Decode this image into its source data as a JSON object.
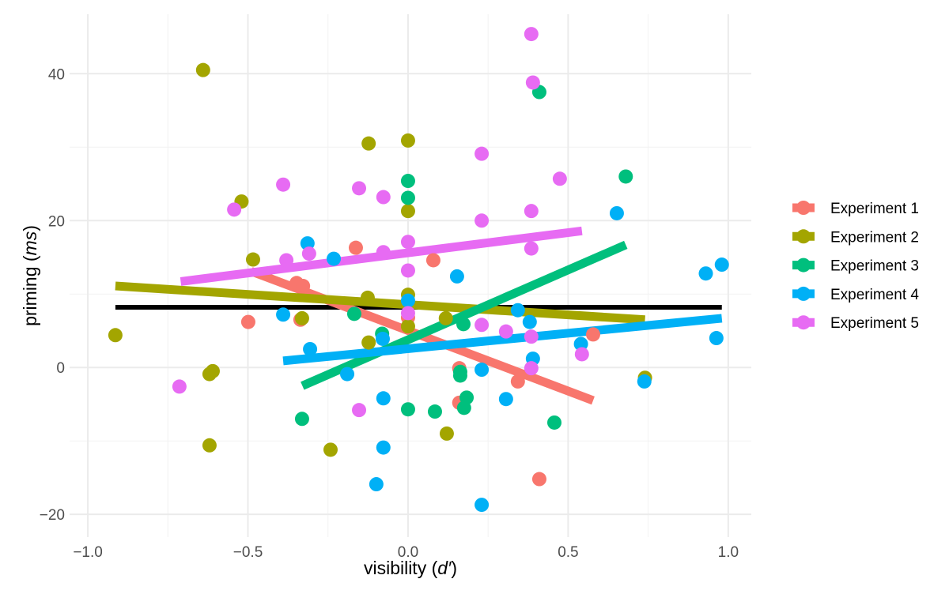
{
  "chart_data": {
    "type": "scatter",
    "xlabel": {
      "prefix": "visibility (",
      "italic": "d′",
      "suffix": ")"
    },
    "ylabel": {
      "prefix": "priming (",
      "italic": "ms",
      "suffix": ")"
    },
    "xlim": [
      -1.057,
      1.072
    ],
    "ylim": [
      -23.1,
      48.1
    ],
    "x_ticks": [
      {
        "v": -1.0,
        "label": "−1.0"
      },
      {
        "v": -0.5,
        "label": "−0.5"
      },
      {
        "v": 0.0,
        "label": "0.0"
      },
      {
        "v": 0.5,
        "label": "0.5"
      },
      {
        "v": 1.0,
        "label": "1.0"
      }
    ],
    "y_ticks": [
      {
        "v": -20,
        "label": "−20"
      },
      {
        "v": 0,
        "label": "0"
      },
      {
        "v": 20,
        "label": "20"
      },
      {
        "v": 40,
        "label": "40"
      }
    ],
    "grid": true,
    "legend_position": "right",
    "overall_fit": {
      "color": "#000000",
      "x": [
        -0.914,
        0.98
      ],
      "y": [
        8.2,
        8.2
      ]
    },
    "series": [
      {
        "name": "Experiment 1",
        "color": "#F8766D",
        "fit": {
          "x": [
            -0.49,
            0.578
          ],
          "y": [
            13.1,
            -4.5
          ]
        },
        "points": [
          [
            -0.163,
            16.3
          ],
          [
            0.079,
            14.6
          ],
          [
            -0.348,
            11.5
          ],
          [
            -0.328,
            11.1
          ],
          [
            -0.499,
            6.2
          ],
          [
            -0.336,
            6.5
          ],
          [
            0.0,
            6.8
          ],
          [
            0.16,
            -0.1
          ],
          [
            0.16,
            -4.8
          ],
          [
            0.578,
            4.5
          ],
          [
            0.41,
            -15.2
          ],
          [
            0.343,
            -1.9
          ]
        ]
      },
      {
        "name": "Experiment 2",
        "color": "#A3A500",
        "fit": {
          "x": [
            -0.914,
            0.74
          ],
          "y": [
            11.1,
            6.5
          ]
        },
        "points": [
          [
            -0.64,
            40.5
          ],
          [
            -0.52,
            22.6
          ],
          [
            -0.484,
            14.7
          ],
          [
            -0.914,
            4.4
          ],
          [
            -0.123,
            30.5
          ],
          [
            0.0,
            30.9
          ],
          [
            0.0,
            21.3
          ],
          [
            -0.126,
            9.5
          ],
          [
            0.0,
            9.9
          ],
          [
            -0.331,
            6.7
          ],
          [
            -0.123,
            3.4
          ],
          [
            -0.62,
            -0.9
          ],
          [
            -0.61,
            -0.5
          ],
          [
            -0.62,
            -10.6
          ],
          [
            -0.242,
            -11.2
          ],
          [
            0.121,
            -9.0
          ],
          [
            0.118,
            6.7
          ],
          [
            0.0,
            5.6
          ],
          [
            0.74,
            -1.4
          ]
        ]
      },
      {
        "name": "Experiment 3",
        "color": "#00BF7D",
        "fit": {
          "x": [
            -0.33,
            0.68
          ],
          "y": [
            -2.5,
            16.7
          ]
        },
        "points": [
          [
            0.0,
            25.4
          ],
          [
            0.0,
            23.1
          ],
          [
            0.41,
            37.5
          ],
          [
            0.68,
            26.0
          ],
          [
            -0.168,
            7.3
          ],
          [
            -0.081,
            4.6
          ],
          [
            -0.331,
            -7.0
          ],
          [
            0.0,
            -5.7
          ],
          [
            0.084,
            -6.0
          ],
          [
            0.163,
            -0.6
          ],
          [
            0.163,
            -1.1
          ],
          [
            0.183,
            -4.1
          ],
          [
            0.175,
            -5.5
          ],
          [
            0.457,
            -7.5
          ],
          [
            0.173,
            5.9
          ]
        ]
      },
      {
        "name": "Experiment 4",
        "color": "#00B0F6",
        "fit": {
          "x": [
            -0.39,
            0.98
          ],
          "y": [
            0.9,
            6.7
          ]
        },
        "points": [
          [
            -0.314,
            16.9
          ],
          [
            -0.232,
            14.8
          ],
          [
            -0.39,
            7.2
          ],
          [
            -0.306,
            2.5
          ],
          [
            0.0,
            9.1
          ],
          [
            -0.079,
            3.9
          ],
          [
            -0.19,
            -0.9
          ],
          [
            -0.077,
            -4.2
          ],
          [
            -0.077,
            -10.9
          ],
          [
            -0.099,
            -15.9
          ],
          [
            0.23,
            -18.7
          ],
          [
            0.153,
            12.4
          ],
          [
            0.23,
            -0.3
          ],
          [
            0.306,
            -4.3
          ],
          [
            0.343,
            7.8
          ],
          [
            0.38,
            6.2
          ],
          [
            0.39,
            1.2
          ],
          [
            0.54,
            3.2
          ],
          [
            0.652,
            21.0
          ],
          [
            0.93,
            12.8
          ],
          [
            0.98,
            14.0
          ],
          [
            0.963,
            4.0
          ],
          [
            0.738,
            -1.9
          ]
        ]
      },
      {
        "name": "Experiment 5",
        "color": "#E76BF3",
        "fit": {
          "x": [
            -0.71,
            0.543
          ],
          "y": [
            11.7,
            18.6
          ]
        },
        "points": [
          [
            0.385,
            45.4
          ],
          [
            0.39,
            38.8
          ],
          [
            0.23,
            29.1
          ],
          [
            0.474,
            25.7
          ],
          [
            -0.39,
            24.9
          ],
          [
            -0.153,
            24.4
          ],
          [
            -0.077,
            23.2
          ],
          [
            -0.543,
            21.5
          ],
          [
            0.23,
            20.0
          ],
          [
            0.385,
            21.3
          ],
          [
            -0.38,
            14.6
          ],
          [
            -0.309,
            15.5
          ],
          [
            -0.077,
            15.7
          ],
          [
            0.0,
            17.1
          ],
          [
            0.385,
            16.2
          ],
          [
            0.0,
            13.2
          ],
          [
            0.23,
            5.8
          ],
          [
            0.306,
            4.9
          ],
          [
            0.385,
            4.2
          ],
          [
            0.0,
            7.4
          ],
          [
            0.385,
            -0.1
          ],
          [
            0.543,
            1.8
          ],
          [
            -0.714,
            -2.6
          ],
          [
            -0.153,
            -5.8
          ]
        ]
      }
    ]
  }
}
